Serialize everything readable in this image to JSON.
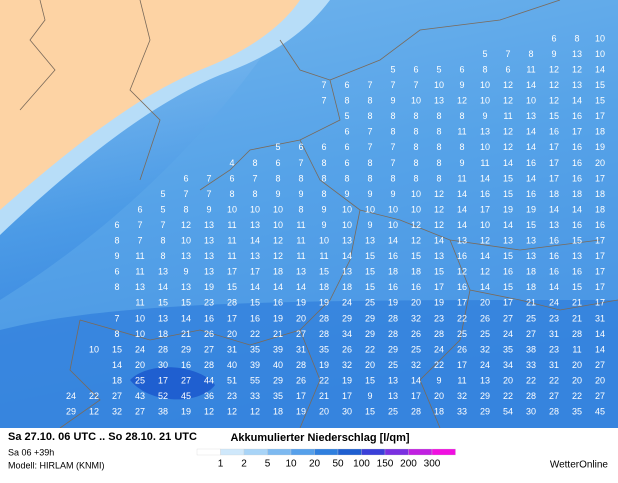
{
  "map": {
    "grid_rows": [
      [
        6,
        8,
        10
      ],
      [
        5,
        7,
        8,
        9,
        13,
        10
      ],
      [
        5,
        6,
        5,
        6,
        8,
        6,
        11,
        12,
        12,
        14
      ],
      [
        7,
        6,
        7,
        7,
        7,
        10,
        9,
        10,
        12,
        14,
        12,
        13,
        15
      ],
      [
        7,
        8,
        8,
        9,
        10,
        13,
        12,
        10,
        12,
        10,
        12,
        14,
        15
      ],
      [
        5,
        8,
        8,
        8,
        8,
        8,
        9,
        11,
        13,
        15,
        16,
        17
      ],
      [
        6,
        7,
        8,
        8,
        8,
        11,
        13,
        12,
        14,
        16,
        17,
        18
      ],
      [
        5,
        6,
        6,
        6,
        7,
        7,
        8,
        8,
        8,
        10,
        12,
        14,
        17,
        16,
        19
      ],
      [
        4,
        8,
        6,
        7,
        8,
        6,
        8,
        7,
        8,
        8,
        9,
        11,
        14,
        16,
        17,
        16,
        20
      ],
      [
        6,
        7,
        6,
        7,
        8,
        8,
        8,
        8,
        8,
        8,
        8,
        8,
        11,
        14,
        15,
        14,
        17,
        16,
        17
      ],
      [
        5,
        7,
        7,
        8,
        8,
        9,
        9,
        8,
        9,
        9,
        9,
        10,
        12,
        14,
        16,
        15,
        16,
        18,
        18,
        18
      ],
      [
        6,
        5,
        8,
        9,
        10,
        10,
        10,
        8,
        9,
        10,
        10,
        10,
        10,
        12,
        14,
        17,
        19,
        19,
        14,
        14,
        18
      ],
      [
        6,
        7,
        7,
        12,
        13,
        11,
        13,
        10,
        11,
        9,
        10,
        9,
        10,
        12,
        12,
        14,
        10,
        14,
        15,
        13,
        16,
        16
      ],
      [
        8,
        7,
        8,
        10,
        13,
        11,
        14,
        12,
        11,
        10,
        13,
        13,
        14,
        12,
        14,
        13,
        12,
        13,
        13,
        16,
        15,
        17
      ],
      [
        9,
        11,
        8,
        13,
        13,
        11,
        13,
        12,
        11,
        11,
        14,
        15,
        16,
        15,
        13,
        16,
        14,
        15,
        13,
        16,
        13,
        17
      ],
      [
        6,
        11,
        13,
        9,
        13,
        17,
        17,
        18,
        13,
        15,
        13,
        15,
        18,
        18,
        15,
        12,
        12,
        16,
        18,
        16,
        16,
        17
      ],
      [
        8,
        13,
        14,
        13,
        19,
        15,
        14,
        14,
        14,
        18,
        18,
        15,
        16,
        16,
        17,
        16,
        14,
        15,
        18,
        14,
        15,
        17
      ],
      [
        11,
        15,
        15,
        23,
        28,
        15,
        16,
        19,
        19,
        24,
        25,
        19,
        20,
        19,
        17,
        20,
        17,
        21,
        24,
        21,
        17
      ],
      [
        7,
        10,
        13,
        14,
        16,
        17,
        16,
        19,
        20,
        28,
        29,
        29,
        28,
        32,
        23,
        22,
        26,
        27,
        25,
        23,
        21,
        31
      ],
      [
        8,
        10,
        18,
        21,
        26,
        20,
        22,
        21,
        27,
        28,
        34,
        29,
        28,
        26,
        28,
        25,
        25,
        24,
        27,
        31,
        28,
        14
      ],
      [
        10,
        15,
        24,
        28,
        29,
        27,
        31,
        35,
        39,
        31,
        35,
        26,
        22,
        29,
        25,
        24,
        26,
        32,
        35,
        38,
        23,
        11,
        14
      ],
      [
        14,
        20,
        30,
        16,
        28,
        40,
        39,
        40,
        28,
        19,
        32,
        20,
        25,
        32,
        22,
        17,
        24,
        34,
        33,
        31,
        20,
        27
      ],
      [
        18,
        25,
        17,
        27,
        44,
        51,
        55,
        29,
        26,
        22,
        19,
        15,
        13,
        14,
        9,
        11,
        13,
        20,
        22,
        22,
        20,
        20
      ],
      [
        24,
        22,
        27,
        43,
        52,
        45,
        36,
        23,
        33,
        35,
        17,
        21,
        17,
        9,
        13,
        17,
        20,
        32,
        29,
        22,
        28,
        27,
        22,
        27
      ],
      [
        29,
        12,
        32,
        27,
        38,
        19,
        12,
        12,
        12,
        18,
        19,
        20,
        30,
        15,
        25,
        28,
        18,
        33,
        29,
        54,
        30,
        28,
        35,
        45
      ]
    ],
    "period": "Sa 27.10. 06 UTC .. So 28.10. 21 UTC",
    "run": "Sa 06 +39h",
    "model": "Modell: HIRLAM (KNMI)",
    "legend_title": "Akkumulierter Niederschlag [l/qm]",
    "legend_ticks": [
      1,
      2,
      5,
      10,
      20,
      50,
      100,
      150,
      200,
      300
    ],
    "legend_colors": [
      "#ffffff",
      "#cfe8fb",
      "#a8d4f7",
      "#7db9f0",
      "#56a0ea",
      "#2f7fde",
      "#1f5fd0",
      "#3a3fd8",
      "#7a30e0",
      "#c020e0",
      "#f010e0"
    ],
    "brand": "WetterOnline"
  }
}
